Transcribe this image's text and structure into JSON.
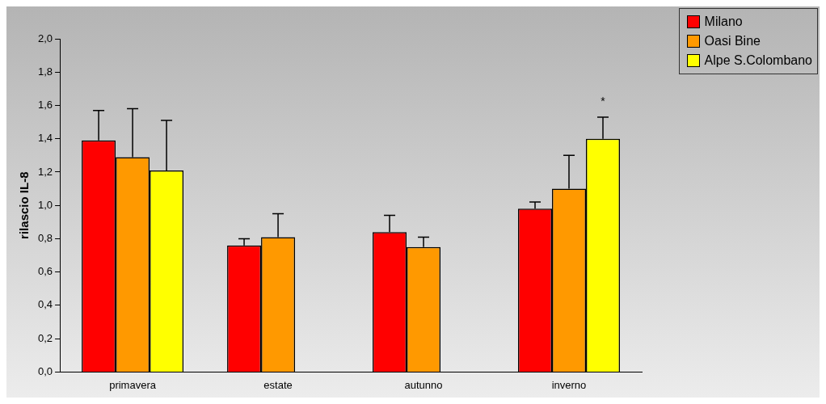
{
  "chart_data": {
    "type": "bar",
    "ylabel": "rilascio IL-8",
    "categories": [
      "primavera",
      "estate",
      "autunno",
      "inverno"
    ],
    "series": [
      {
        "name": "Milano",
        "color": "#ff0000",
        "values": [
          1.39,
          0.76,
          0.84,
          0.98
        ],
        "errors": [
          [
            1.39,
            1.57
          ],
          [
            0.76,
            0.8
          ],
          [
            0.84,
            0.94
          ],
          [
            0.98,
            1.02
          ]
        ]
      },
      {
        "name": "Oasi Bine",
        "color": "#ff9900",
        "values": [
          1.29,
          0.81,
          0.75,
          1.1
        ],
        "errors": [
          [
            1.29,
            1.58
          ],
          [
            0.81,
            0.95
          ],
          [
            0.75,
            0.81
          ],
          [
            1.1,
            1.3
          ]
        ]
      },
      {
        "name": "Alpe S.Colombano",
        "color": "#ffff00",
        "values": [
          1.21,
          null,
          null,
          1.4
        ],
        "errors": [
          [
            1.21,
            1.51
          ],
          null,
          null,
          [
            1.4,
            1.53
          ]
        ]
      }
    ],
    "ylim": [
      0,
      2
    ],
    "yticks": [
      {
        "value": 0,
        "label": "0,0"
      },
      {
        "value": 0.2,
        "label": "0,2"
      },
      {
        "value": 0.4,
        "label": "0,4"
      },
      {
        "value": 0.6,
        "label": "0,6"
      },
      {
        "value": 0.8,
        "label": "0,8"
      },
      {
        "value": 1,
        "label": "1,0"
      },
      {
        "value": 1.2,
        "label": "1,2"
      },
      {
        "value": 1.4,
        "label": "1,4"
      },
      {
        "value": 1.6,
        "label": "1,6"
      },
      {
        "value": 1.8,
        "label": "1,8"
      },
      {
        "value": 2,
        "label": "2,0"
      }
    ],
    "annotations": [
      "*"
    ],
    "grid": false,
    "legend": "top right"
  }
}
